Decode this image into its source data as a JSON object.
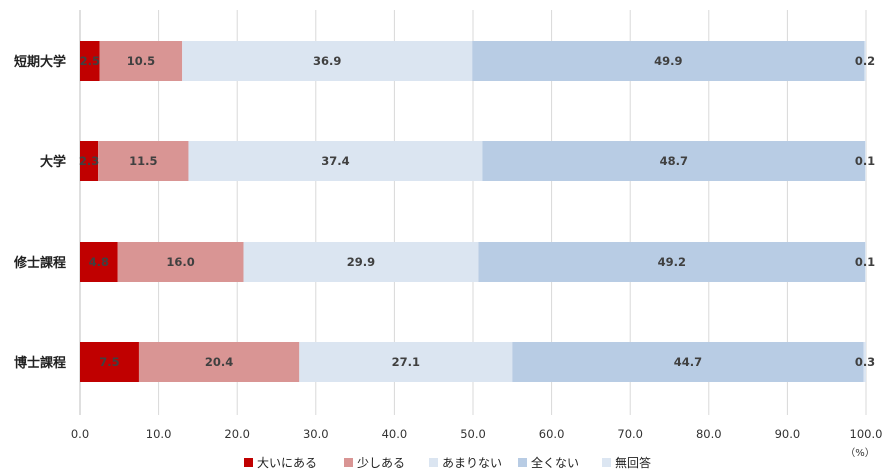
{
  "chart_data": {
    "type": "bar",
    "orientation": "horizontal",
    "stacked": true,
    "categories": [
      "短期大学",
      "大学",
      "修士課程",
      "博士課程"
    ],
    "series": [
      {
        "name": "大いにある",
        "color": "#c00000",
        "values": [
          2.5,
          2.3,
          4.8,
          7.5
        ]
      },
      {
        "name": "少しある",
        "color": "#d99594",
        "values": [
          10.5,
          11.5,
          16.0,
          20.4
        ]
      },
      {
        "name": "あまりない",
        "color": "#dbe5f1",
        "values": [
          36.9,
          37.4,
          29.9,
          27.1
        ]
      },
      {
        "name": "全くない",
        "color": "#b8cce4",
        "values": [
          49.9,
          48.7,
          49.2,
          44.7
        ]
      },
      {
        "name": "無回答",
        "color": "#dce6f2",
        "values": [
          0.2,
          0.1,
          0.1,
          0.3
        ]
      }
    ],
    "xlim": [
      0,
      100
    ],
    "xticks": [
      "0.0",
      "10.0",
      "20.0",
      "30.0",
      "40.0",
      "50.0",
      "60.0",
      "70.0",
      "80.0",
      "90.0",
      "100.0"
    ],
    "unit": "（%）",
    "grid": true,
    "legend_position": "bottom"
  }
}
